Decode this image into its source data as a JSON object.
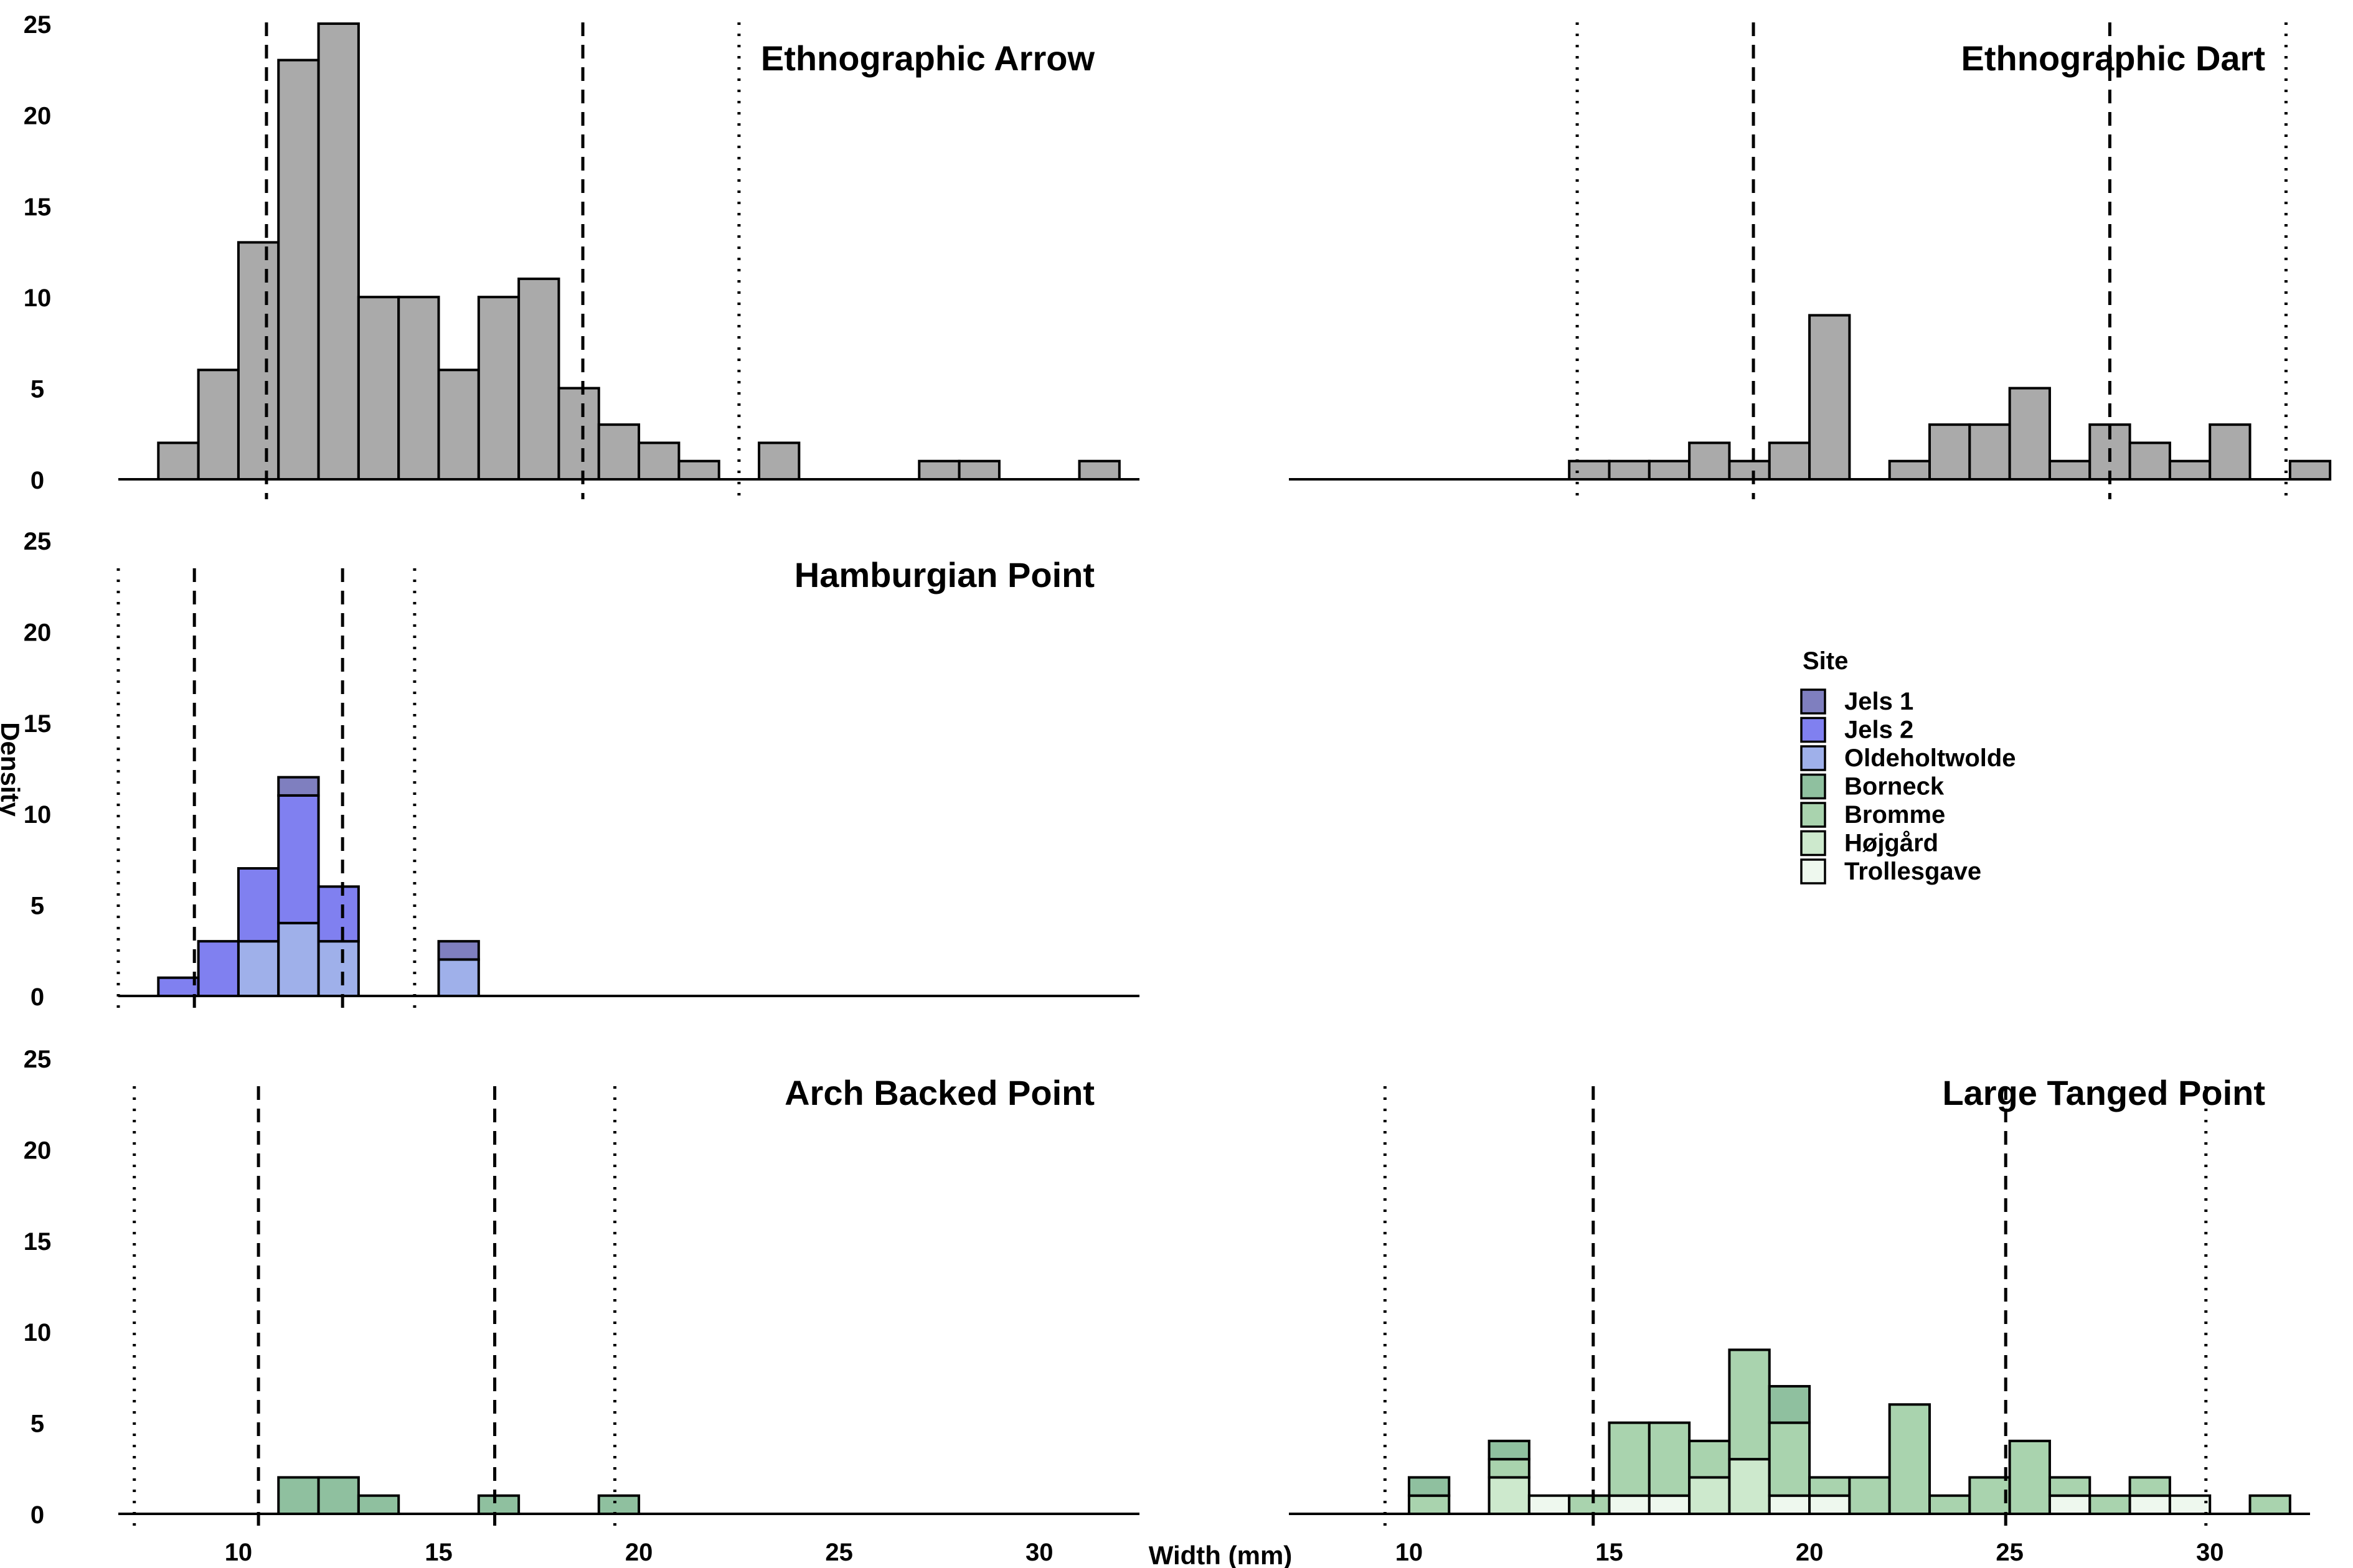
{
  "chart_data": {
    "type": "bar",
    "xlabel": "Width (mm)",
    "ylabel": "Density",
    "xlim": [
      7.0,
      32.5
    ],
    "ylim": [
      0,
      25
    ],
    "bin_width": 1.0,
    "x_ticks": [
      "10",
      "15",
      "20",
      "25",
      "30"
    ],
    "y_ticks": [
      "0",
      "5",
      "10",
      "15",
      "20",
      "25"
    ],
    "legend": {
      "title": "Site",
      "position": "right",
      "items": [
        {
          "label": "Jels 1",
          "color": "#7f7fbf"
        },
        {
          "label": "Jels 2",
          "color": "#8080f0"
        },
        {
          "label": "Oldeholtwolde",
          "color": "#9fb0ea"
        },
        {
          "label": "Borneck",
          "color": "#8fc09f"
        },
        {
          "label": "Bromme",
          "color": "#a9d3ae"
        },
        {
          "label": "Højgård",
          "color": "#cde9cd"
        },
        {
          "label": "Trollesgave",
          "color": "#eef8ee"
        }
      ]
    },
    "panels": [
      {
        "title": "Ethnographic Arrow",
        "row": 0,
        "col": 0,
        "mean": 14.6,
        "sd_lines": [
          10.7,
          18.6
        ],
        "outer_lines": [
          22.5
        ],
        "bins": [
          {
            "x": 8.5,
            "stacks": [
              {
                "color": "#aaaaaa",
                "value": 2
              }
            ]
          },
          {
            "x": 9.5,
            "stacks": [
              {
                "color": "#aaaaaa",
                "value": 6
              }
            ]
          },
          {
            "x": 10.5,
            "stacks": [
              {
                "color": "#aaaaaa",
                "value": 13
              }
            ]
          },
          {
            "x": 11.5,
            "stacks": [
              {
                "color": "#aaaaaa",
                "value": 23
              }
            ]
          },
          {
            "x": 12.5,
            "stacks": [
              {
                "color": "#aaaaaa",
                "value": 25
              }
            ]
          },
          {
            "x": 13.5,
            "stacks": [
              {
                "color": "#aaaaaa",
                "value": 10
              }
            ]
          },
          {
            "x": 14.5,
            "stacks": [
              {
                "color": "#aaaaaa",
                "value": 10
              }
            ]
          },
          {
            "x": 15.5,
            "stacks": [
              {
                "color": "#aaaaaa",
                "value": 6
              }
            ]
          },
          {
            "x": 16.5,
            "stacks": [
              {
                "color": "#aaaaaa",
                "value": 10
              }
            ]
          },
          {
            "x": 17.5,
            "stacks": [
              {
                "color": "#aaaaaa",
                "value": 11
              }
            ]
          },
          {
            "x": 18.5,
            "stacks": [
              {
                "color": "#aaaaaa",
                "value": 5
              }
            ]
          },
          {
            "x": 19.5,
            "stacks": [
              {
                "color": "#aaaaaa",
                "value": 3
              }
            ]
          },
          {
            "x": 20.5,
            "stacks": [
              {
                "color": "#aaaaaa",
                "value": 2
              }
            ]
          },
          {
            "x": 21.5,
            "stacks": [
              {
                "color": "#aaaaaa",
                "value": 1
              }
            ]
          },
          {
            "x": 23.5,
            "stacks": [
              {
                "color": "#aaaaaa",
                "value": 2
              }
            ]
          },
          {
            "x": 27.5,
            "stacks": [
              {
                "color": "#aaaaaa",
                "value": 1
              }
            ]
          },
          {
            "x": 28.5,
            "stacks": [
              {
                "color": "#aaaaaa",
                "value": 1
              }
            ]
          },
          {
            "x": 31.5,
            "stacks": [
              {
                "color": "#aaaaaa",
                "value": 1
              }
            ]
          }
        ]
      },
      {
        "title": "Ethnographic Dart",
        "row": 0,
        "col": 1,
        "sd_lines": [
          18.6,
          27.5
        ],
        "outer_lines": [
          14.2,
          31.9
        ],
        "bins": [
          {
            "x": 14.5,
            "stacks": [
              {
                "color": "#aaaaaa",
                "value": 1
              }
            ]
          },
          {
            "x": 15.5,
            "stacks": [
              {
                "color": "#aaaaaa",
                "value": 1
              }
            ]
          },
          {
            "x": 16.5,
            "stacks": [
              {
                "color": "#aaaaaa",
                "value": 1
              }
            ]
          },
          {
            "x": 17.5,
            "stacks": [
              {
                "color": "#aaaaaa",
                "value": 2
              }
            ]
          },
          {
            "x": 18.5,
            "stacks": [
              {
                "color": "#aaaaaa",
                "value": 1
              }
            ]
          },
          {
            "x": 19.5,
            "stacks": [
              {
                "color": "#aaaaaa",
                "value": 2
              }
            ]
          },
          {
            "x": 20.5,
            "stacks": [
              {
                "color": "#aaaaaa",
                "value": 9
              }
            ]
          },
          {
            "x": 22.5,
            "stacks": [
              {
                "color": "#aaaaaa",
                "value": 1
              }
            ]
          },
          {
            "x": 23.5,
            "stacks": [
              {
                "color": "#aaaaaa",
                "value": 3
              }
            ]
          },
          {
            "x": 24.5,
            "stacks": [
              {
                "color": "#aaaaaa",
                "value": 3
              }
            ]
          },
          {
            "x": 25.5,
            "stacks": [
              {
                "color": "#aaaaaa",
                "value": 5
              }
            ]
          },
          {
            "x": 26.5,
            "stacks": [
              {
                "color": "#aaaaaa",
                "value": 1
              }
            ]
          },
          {
            "x": 27.5,
            "stacks": [
              {
                "color": "#aaaaaa",
                "value": 3
              }
            ]
          },
          {
            "x": 28.5,
            "stacks": [
              {
                "color": "#aaaaaa",
                "value": 2
              }
            ]
          },
          {
            "x": 29.5,
            "stacks": [
              {
                "color": "#aaaaaa",
                "value": 1
              }
            ]
          },
          {
            "x": 30.5,
            "stacks": [
              {
                "color": "#aaaaaa",
                "value": 3
              }
            ]
          },
          {
            "x": 32.5,
            "stacks": [
              {
                "color": "#aaaaaa",
                "value": 1
              }
            ]
          }
        ]
      },
      {
        "title": "Hamburgian Point",
        "row": 1,
        "col": 0,
        "sd_lines": [
          8.9,
          12.6
        ],
        "outer_lines": [
          7.0,
          14.4
        ],
        "bins": [
          {
            "x": 8.5,
            "stacks": [
              {
                "color": "#8080f0",
                "value": 1
              }
            ]
          },
          {
            "x": 9.5,
            "stacks": [
              {
                "color": "#8080f0",
                "value": 3
              }
            ]
          },
          {
            "x": 10.5,
            "stacks": [
              {
                "color": "#9fb0ea",
                "value": 3
              },
              {
                "color": "#8080f0",
                "value": 4
              }
            ]
          },
          {
            "x": 11.5,
            "stacks": [
              {
                "color": "#9fb0ea",
                "value": 4
              },
              {
                "color": "#8080f0",
                "value": 7
              },
              {
                "color": "#7f7fbf",
                "value": 1
              }
            ]
          },
          {
            "x": 12.5,
            "stacks": [
              {
                "color": "#9fb0ea",
                "value": 3
              },
              {
                "color": "#8080f0",
                "value": 3
              }
            ]
          },
          {
            "x": 15.5,
            "stacks": [
              {
                "color": "#9fb0ea",
                "value": 2
              },
              {
                "color": "#7f7fbf",
                "value": 1
              }
            ]
          }
        ]
      },
      {
        "title": "Arch Backed Point",
        "row": 2,
        "col": 0,
        "sd_lines": [
          10.5,
          16.4
        ],
        "outer_lines": [
          7.4,
          19.4
        ],
        "bins": [
          {
            "x": 11.5,
            "stacks": [
              {
                "color": "#8fc09f",
                "value": 2
              }
            ]
          },
          {
            "x": 12.5,
            "stacks": [
              {
                "color": "#8fc09f",
                "value": 2
              }
            ]
          },
          {
            "x": 13.5,
            "stacks": [
              {
                "color": "#8fc09f",
                "value": 1
              }
            ]
          },
          {
            "x": 16.5,
            "stacks": [
              {
                "color": "#8fc09f",
                "value": 1
              }
            ]
          },
          {
            "x": 19.5,
            "stacks": [
              {
                "color": "#8fc09f",
                "value": 1
              }
            ]
          }
        ]
      },
      {
        "title": "Large Tanged Point",
        "row": 2,
        "col": 1,
        "sd_lines": [
          14.6,
          24.9
        ],
        "outer_lines": [
          9.4,
          29.9
        ],
        "bins": [
          {
            "x": 10.5,
            "stacks": [
              {
                "color": "#a9d3ae",
                "value": 1
              },
              {
                "color": "#8fc09f",
                "value": 1
              }
            ]
          },
          {
            "x": 12.5,
            "stacks": [
              {
                "color": "#cde9cd",
                "value": 2
              },
              {
                "color": "#a9d3ae",
                "value": 1
              },
              {
                "color": "#8fc09f",
                "value": 1
              }
            ]
          },
          {
            "x": 13.5,
            "stacks": [
              {
                "color": "#eef8ee",
                "value": 1
              }
            ]
          },
          {
            "x": 14.5,
            "stacks": [
              {
                "color": "#a9d3ae",
                "value": 1
              }
            ]
          },
          {
            "x": 15.5,
            "stacks": [
              {
                "color": "#eef8ee",
                "value": 1
              },
              {
                "color": "#a9d3ae",
                "value": 4
              }
            ]
          },
          {
            "x": 16.5,
            "stacks": [
              {
                "color": "#eef8ee",
                "value": 1
              },
              {
                "color": "#a9d3ae",
                "value": 4
              }
            ]
          },
          {
            "x": 17.5,
            "stacks": [
              {
                "color": "#cde9cd",
                "value": 2
              },
              {
                "color": "#a9d3ae",
                "value": 2
              }
            ]
          },
          {
            "x": 18.5,
            "stacks": [
              {
                "color": "#cde9cd",
                "value": 3
              },
              {
                "color": "#a9d3ae",
                "value": 6
              }
            ]
          },
          {
            "x": 19.5,
            "stacks": [
              {
                "color": "#eef8ee",
                "value": 1
              },
              {
                "color": "#a9d3ae",
                "value": 4
              },
              {
                "color": "#8fc09f",
                "value": 2
              }
            ]
          },
          {
            "x": 20.5,
            "stacks": [
              {
                "color": "#eef8ee",
                "value": 1
              },
              {
                "color": "#a9d3ae",
                "value": 1
              }
            ]
          },
          {
            "x": 21.5,
            "stacks": [
              {
                "color": "#a9d3ae",
                "value": 2
              }
            ]
          },
          {
            "x": 22.5,
            "stacks": [
              {
                "color": "#a9d3ae",
                "value": 6
              }
            ]
          },
          {
            "x": 23.5,
            "stacks": [
              {
                "color": "#a9d3ae",
                "value": 1
              }
            ]
          },
          {
            "x": 24.5,
            "stacks": [
              {
                "color": "#a9d3ae",
                "value": 2
              }
            ]
          },
          {
            "x": 25.5,
            "stacks": [
              {
                "color": "#a9d3ae",
                "value": 4
              }
            ]
          },
          {
            "x": 26.5,
            "stacks": [
              {
                "color": "#eef8ee",
                "value": 1
              },
              {
                "color": "#a9d3ae",
                "value": 1
              }
            ]
          },
          {
            "x": 27.5,
            "stacks": [
              {
                "color": "#a9d3ae",
                "value": 1
              }
            ]
          },
          {
            "x": 28.5,
            "stacks": [
              {
                "color": "#eef8ee",
                "value": 1
              },
              {
                "color": "#a9d3ae",
                "value": 1
              }
            ]
          },
          {
            "x": 29.5,
            "stacks": [
              {
                "color": "#eef8ee",
                "value": 1
              }
            ]
          },
          {
            "x": 31.5,
            "stacks": [
              {
                "color": "#a9d3ae",
                "value": 1
              }
            ]
          }
        ]
      }
    ]
  }
}
